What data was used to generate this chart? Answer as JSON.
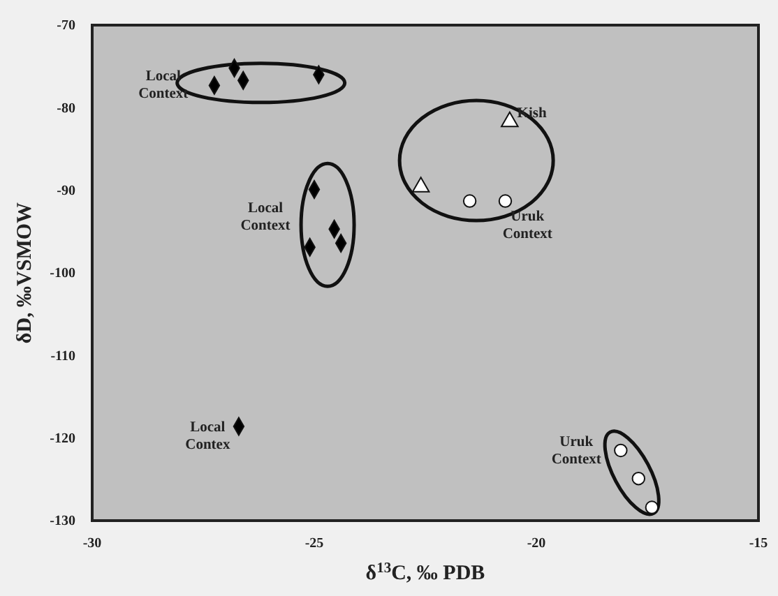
{
  "chart_data": {
    "type": "scatter",
    "xlabel": "δ$^{13}$C, ‰ PDB",
    "ylabel": "δD, ‰VSMOW",
    "xlim": [
      -30,
      -15
    ],
    "ylim": [
      -130,
      -70
    ],
    "xticks": [
      -30,
      -25,
      -20,
      -15
    ],
    "yticks": [
      -130,
      -120,
      -110,
      -100,
      -90,
      -80,
      -70
    ],
    "grid": false,
    "series": [
      {
        "marker": "diamond",
        "color": "#000000",
        "x": [
          -27.25,
          -26.8,
          -26.6,
          -24.9
        ],
        "values": [
          -77.3,
          -75.2,
          -76.7,
          -76.0
        ]
      },
      {
        "marker": "diamond",
        "color": "#000000",
        "x": [
          -25.0,
          -24.55,
          -24.4,
          -25.1
        ],
        "values": [
          -89.9,
          -94.7,
          -96.4,
          -96.9
        ]
      },
      {
        "marker": "diamond",
        "color": "#000000",
        "x": [
          -26.7
        ],
        "values": [
          -118.6
        ]
      },
      {
        "marker": "triangle",
        "color": "#ffffff",
        "x": [
          -20.6,
          -22.6
        ],
        "values": [
          -81.7,
          -89.6
        ]
      },
      {
        "marker": "circle",
        "color": "#ffffff",
        "x": [
          -21.5,
          -20.7
        ],
        "values": [
          -91.3,
          -91.3
        ]
      },
      {
        "marker": "circle",
        "color": "#ffffff",
        "x": [
          -18.1,
          -17.7,
          -17.4
        ],
        "values": [
          -121.5,
          -124.9,
          -128.4
        ]
      }
    ],
    "annotations": [
      "Local Context",
      "Local Context",
      "Local Contex",
      "Kish",
      "Uruk Context",
      "Uruk Context"
    ]
  }
}
